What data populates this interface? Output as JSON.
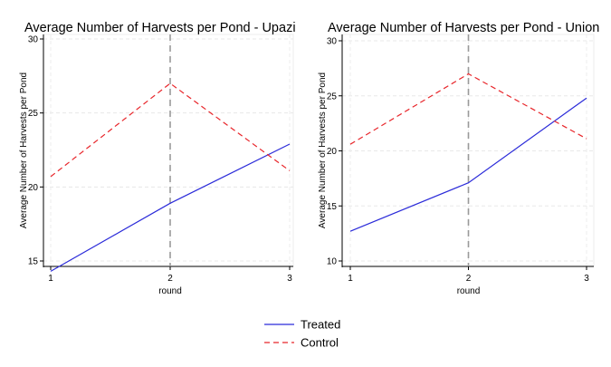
{
  "chart_data": [
    {
      "type": "line",
      "title": "Average Number of Harvests per Pond - Upazi",
      "xlabel": "round",
      "ylabel": "Average Number of Harvests per Pond",
      "x": [
        1,
        2,
        3
      ],
      "xlim": [
        1,
        3
      ],
      "ylim": [
        14,
        30
      ],
      "yticks": [
        15,
        20,
        25,
        30
      ],
      "xticks": [
        1,
        2,
        3
      ],
      "reference_line_x": 2,
      "grid": true,
      "series": [
        {
          "name": "Treated",
          "values": [
            14.3,
            18.9,
            22.9
          ],
          "color": "#2b2bd9",
          "style": "solid"
        },
        {
          "name": "Control",
          "values": [
            20.7,
            27.0,
            21.1
          ],
          "color": "#e8262b",
          "style": "dashed"
        }
      ]
    },
    {
      "type": "line",
      "title": "Average Number of Harvests per Pond - Union",
      "xlabel": "round",
      "ylabel": "Average Number of Harvests per Pond",
      "x": [
        1,
        2,
        3
      ],
      "xlim": [
        1,
        3
      ],
      "ylim": [
        9.6,
        30
      ],
      "yticks": [
        10,
        15,
        20,
        25,
        30
      ],
      "xticks": [
        1,
        2,
        3
      ],
      "reference_line_x": 2,
      "grid": true,
      "series": [
        {
          "name": "Treated",
          "values": [
            12.7,
            17.1,
            24.8
          ],
          "color": "#2b2bd9",
          "style": "solid"
        },
        {
          "name": "Control",
          "values": [
            20.6,
            27.0,
            21.1
          ],
          "color": "#e8262b",
          "style": "dashed"
        }
      ]
    }
  ],
  "legend": {
    "placement": "bottom",
    "items": [
      {
        "label": "Treated",
        "color": "#2b2bd9",
        "style": "solid"
      },
      {
        "label": "Control",
        "color": "#e8262b",
        "style": "dashed"
      }
    ]
  }
}
